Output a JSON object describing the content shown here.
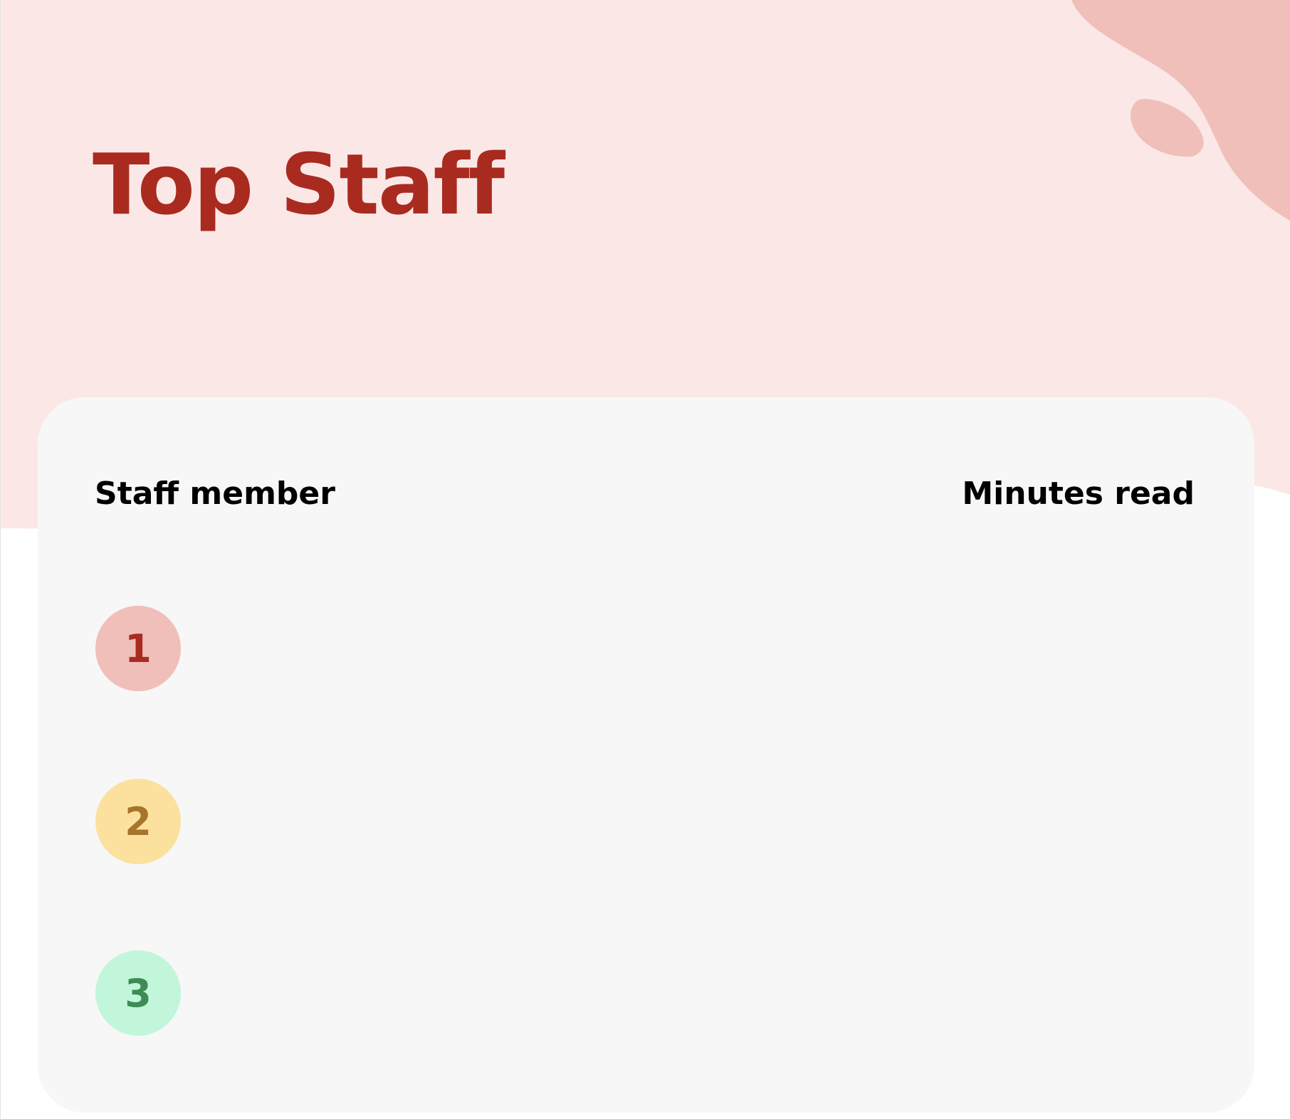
{
  "page": {
    "title": "Top Staff",
    "colors": {
      "accent": "#a92b20",
      "header_bg": "#fbe8e6",
      "blob": "#f0bfba",
      "card_bg": "#f7f7f7"
    }
  },
  "table": {
    "columns": [
      "Staff member",
      "Minutes read"
    ],
    "rows": [
      {
        "rank": "1",
        "badge_bg": "#f0bfba",
        "badge_fg": "#a92b20"
      },
      {
        "rank": "2",
        "badge_bg": "#fbe19d",
        "badge_fg": "#a6742b"
      },
      {
        "rank": "3",
        "badge_bg": "#c2f6da",
        "badge_fg": "#3e8b55"
      }
    ]
  }
}
